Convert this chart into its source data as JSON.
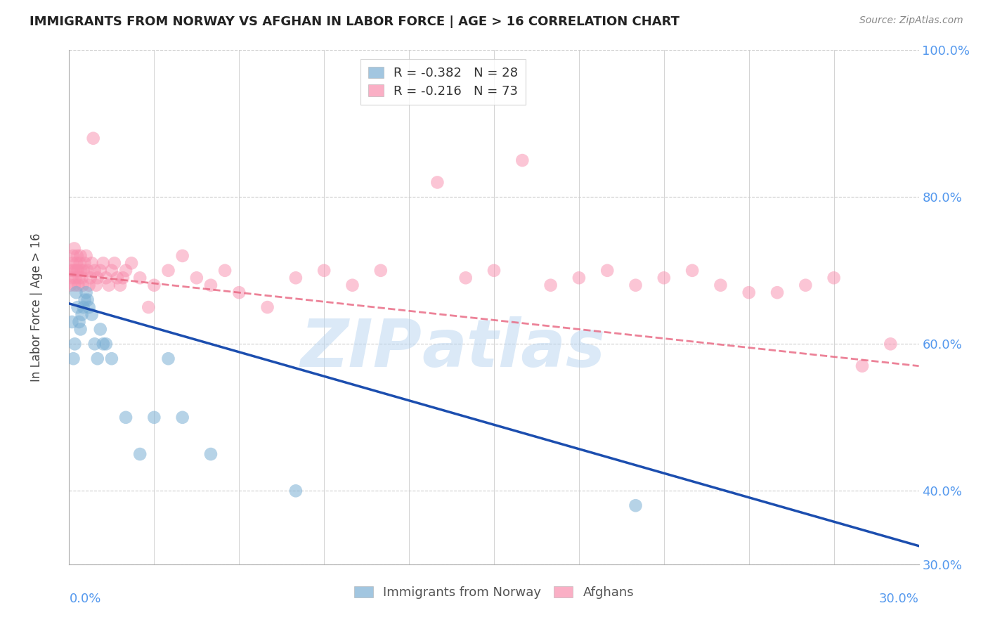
{
  "title": "IMMIGRANTS FROM NORWAY VS AFGHAN IN LABOR FORCE | AGE > 16 CORRELATION CHART",
  "source": "Source: ZipAtlas.com",
  "ylabel": "In Labor Force | Age > 16",
  "xlim": [
    0.0,
    30.0
  ],
  "ylim": [
    30.0,
    100.0
  ],
  "yticks_right": [
    30.0,
    40.0,
    60.0,
    80.0,
    100.0
  ],
  "norway_R": -0.382,
  "norway_N": 28,
  "afghan_R": -0.216,
  "afghan_N": 73,
  "norway_color": "#7BAFD4",
  "afghan_color": "#F88DAD",
  "norway_line_color": "#1C4EAF",
  "afghan_line_color": "#E8637E",
  "background_color": "#FFFFFF",
  "grid_color": "#CCCCCC",
  "right_axis_color": "#5599EE",
  "norway_scatter_x": [
    0.1,
    0.15,
    0.2,
    0.25,
    0.3,
    0.35,
    0.4,
    0.45,
    0.5,
    0.55,
    0.6,
    0.65,
    0.7,
    0.8,
    0.9,
    1.0,
    1.1,
    1.2,
    1.3,
    1.5,
    2.0,
    2.5,
    3.0,
    3.5,
    4.0,
    5.0,
    8.0,
    20.0
  ],
  "norway_scatter_y": [
    63,
    58,
    60,
    67,
    65,
    63,
    62,
    64,
    65,
    66,
    67,
    66,
    65,
    64,
    60,
    58,
    62,
    60,
    60,
    58,
    50,
    45,
    50,
    58,
    50,
    45,
    40,
    38
  ],
  "afghan_scatter_x": [
    0.05,
    0.08,
    0.1,
    0.12,
    0.14,
    0.16,
    0.18,
    0.2,
    0.22,
    0.24,
    0.26,
    0.28,
    0.3,
    0.32,
    0.35,
    0.38,
    0.4,
    0.42,
    0.45,
    0.48,
    0.5,
    0.55,
    0.6,
    0.65,
    0.7,
    0.75,
    0.8,
    0.85,
    0.9,
    0.95,
    1.0,
    1.1,
    1.2,
    1.3,
    1.4,
    1.5,
    1.6,
    1.7,
    1.8,
    1.9,
    2.0,
    2.2,
    2.5,
    2.8,
    3.0,
    3.5,
    4.0,
    4.5,
    5.0,
    5.5,
    6.0,
    7.0,
    8.0,
    9.0,
    10.0,
    11.0,
    13.0,
    14.0,
    15.0,
    16.0,
    17.0,
    18.0,
    19.0,
    20.0,
    21.0,
    22.0,
    23.0,
    24.0,
    25.0,
    26.0,
    27.0,
    28.0,
    29.0
  ],
  "afghan_scatter_y": [
    68,
    70,
    69,
    71,
    72,
    70,
    73,
    68,
    69,
    70,
    71,
    72,
    70,
    68,
    69,
    71,
    72,
    70,
    69,
    68,
    70,
    71,
    72,
    70,
    68,
    69,
    71,
    88,
    70,
    68,
    69,
    70,
    71,
    69,
    68,
    70,
    71,
    69,
    68,
    69,
    70,
    71,
    69,
    65,
    68,
    70,
    72,
    69,
    68,
    70,
    67,
    65,
    69,
    70,
    68,
    70,
    82,
    69,
    70,
    85,
    68,
    69,
    70,
    68,
    69,
    70,
    68,
    67,
    67,
    68,
    69,
    57,
    60
  ],
  "norway_line_x0": 0.0,
  "norway_line_y0": 65.5,
  "norway_line_x1": 30.0,
  "norway_line_y1": 32.5,
  "afghan_line_x0": 0.0,
  "afghan_line_y0": 69.5,
  "afghan_line_x1": 30.0,
  "afghan_line_y1": 57.0
}
